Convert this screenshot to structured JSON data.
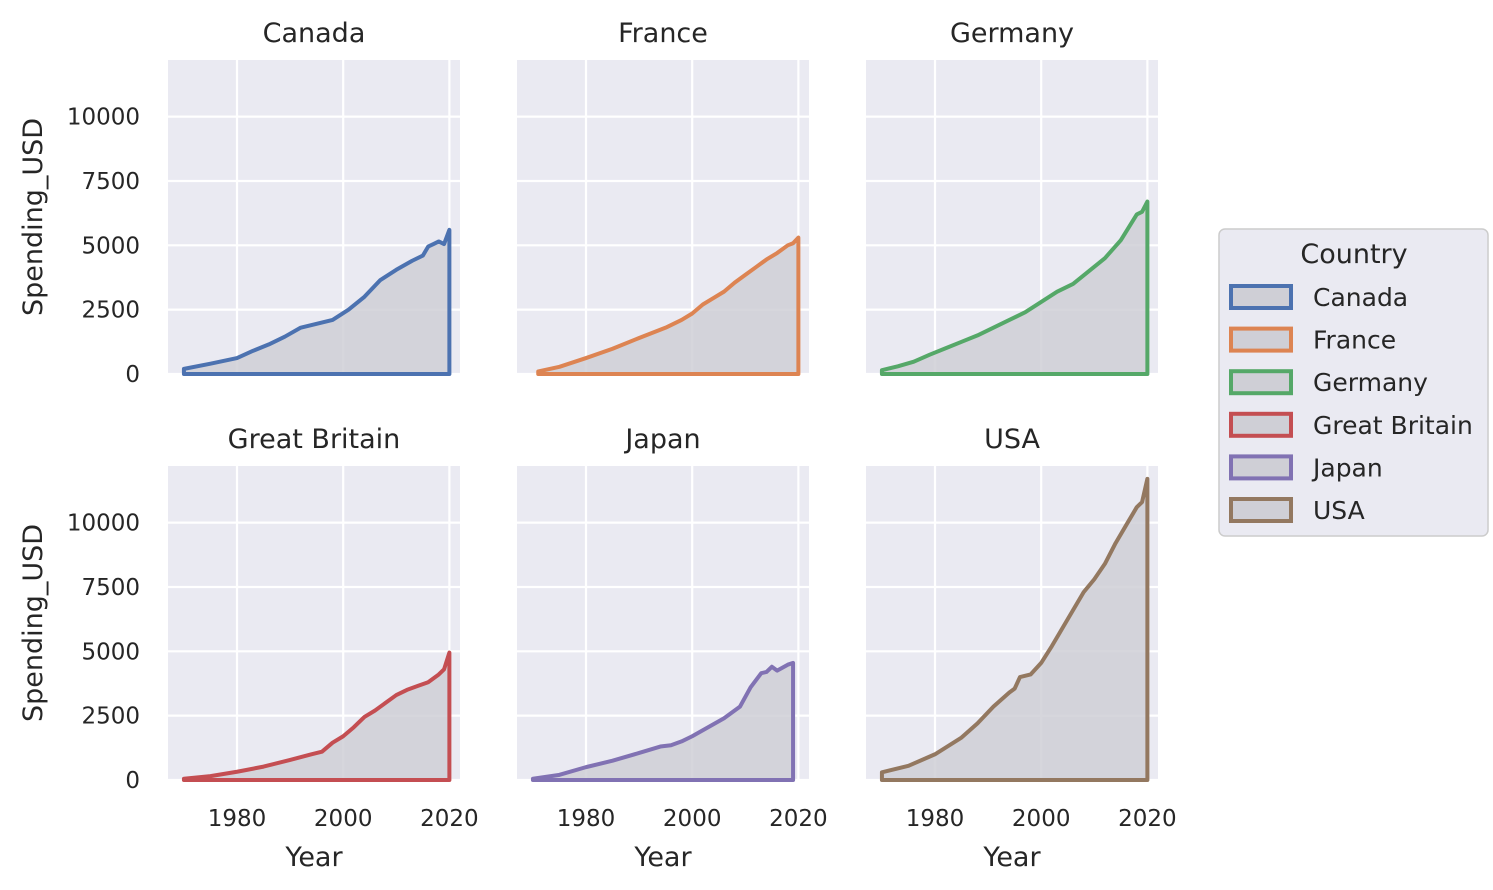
{
  "chart_data": {
    "type": "area",
    "xlabel": "Year",
    "ylabel": "Spending_USD",
    "xlim": [
      1967,
      2022
    ],
    "ylim": [
      0,
      12200
    ],
    "xticks": [
      1980,
      2000,
      2020
    ],
    "yticks": [
      0,
      2500,
      5000,
      7500,
      10000
    ],
    "grid": true,
    "legend": {
      "title": "Country",
      "placement": "right",
      "entries": [
        "Canada",
        "France",
        "Germany",
        "Great Britain",
        "Japan",
        "USA"
      ]
    },
    "fill_color": "#cfcfd6",
    "background_color": "#eaeaf2",
    "facets": [
      {
        "name": "Canada",
        "color": "#4c72b0",
        "x": [
          1970,
          1975,
          1980,
          1983,
          1986,
          1989,
          1992,
          1995,
          1998,
          2001,
          2004,
          2007,
          2010,
          2013,
          2015,
          2016,
          2017,
          2018,
          2019,
          2020
        ],
        "y": [
          200,
          400,
          620,
          900,
          1150,
          1450,
          1800,
          1950,
          2100,
          2500,
          3000,
          3650,
          4050,
          4400,
          4600,
          4950,
          5050,
          5150,
          5050,
          5600
        ]
      },
      {
        "name": "France",
        "color": "#dd8452",
        "x": [
          1971,
          1975,
          1980,
          1985,
          1990,
          1995,
          1998,
          2000,
          2002,
          2004,
          2006,
          2008,
          2010,
          2012,
          2014,
          2016,
          2018,
          2019,
          2020
        ],
        "y": [
          100,
          280,
          620,
          980,
          1400,
          1800,
          2100,
          2350,
          2700,
          2950,
          3200,
          3550,
          3850,
          4150,
          4450,
          4700,
          5000,
          5080,
          5300
        ]
      },
      {
        "name": "Germany",
        "color": "#55a868",
        "x": [
          1970,
          1973,
          1976,
          1979,
          1982,
          1985,
          1988,
          1991,
          1994,
          1997,
          2000,
          2003,
          2006,
          2009,
          2012,
          2015,
          2018,
          2019,
          2020
        ],
        "y": [
          150,
          300,
          480,
          750,
          1000,
          1250,
          1500,
          1800,
          2100,
          2400,
          2800,
          3200,
          3500,
          4000,
          4500,
          5200,
          6200,
          6300,
          6700
        ]
      },
      {
        "name": "Great Britain",
        "color": "#c44e52",
        "x": [
          1970,
          1975,
          1980,
          1985,
          1990,
          1994,
          1996,
          1998,
          2000,
          2002,
          2004,
          2006,
          2008,
          2010,
          2012,
          2014,
          2016,
          2018,
          2019,
          2020
        ],
        "y": [
          50,
          150,
          320,
          520,
          780,
          1000,
          1100,
          1450,
          1700,
          2050,
          2450,
          2700,
          3000,
          3300,
          3500,
          3650,
          3800,
          4100,
          4300,
          4950
        ]
      },
      {
        "name": "Japan",
        "color": "#8172b3",
        "x": [
          1970,
          1975,
          1980,
          1985,
          1990,
          1994,
          1996,
          1998,
          2000,
          2003,
          2006,
          2009,
          2011,
          2013,
          2014,
          2015,
          2016,
          2018,
          2019
        ],
        "y": [
          50,
          200,
          500,
          750,
          1050,
          1300,
          1350,
          1500,
          1700,
          2050,
          2400,
          2850,
          3600,
          4150,
          4200,
          4400,
          4250,
          4480,
          4550
        ]
      },
      {
        "name": "USA",
        "color": "#937860",
        "x": [
          1970,
          1975,
          1980,
          1985,
          1988,
          1991,
          1994,
          1995,
          1996,
          1998,
          2000,
          2002,
          2004,
          2006,
          2008,
          2010,
          2012,
          2014,
          2016,
          2018,
          2019,
          2020
        ],
        "y": [
          300,
          550,
          1000,
          1650,
          2200,
          2850,
          3400,
          3550,
          4000,
          4100,
          4550,
          5200,
          5900,
          6600,
          7300,
          7800,
          8400,
          9200,
          9900,
          10600,
          10800,
          11700
        ]
      }
    ]
  }
}
